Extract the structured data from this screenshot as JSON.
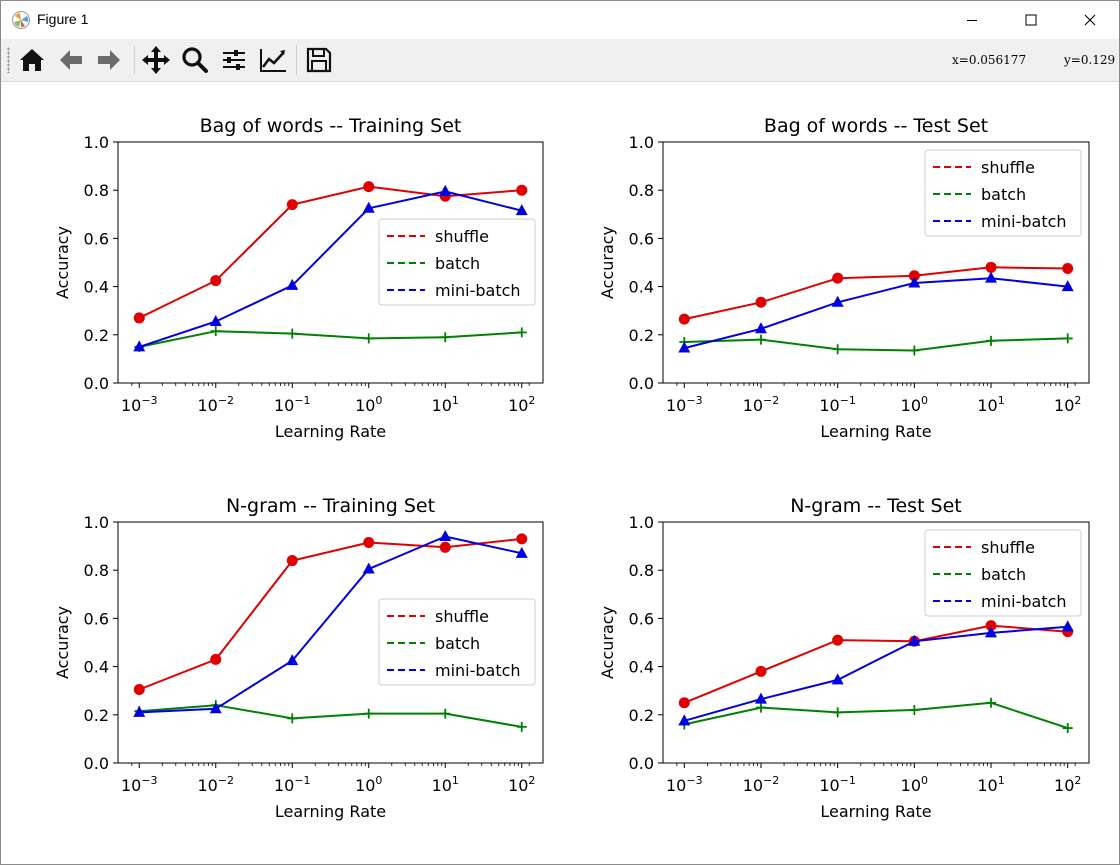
{
  "window": {
    "title": "Figure 1"
  },
  "toolbar": {
    "buttons": [
      {
        "name": "home-icon"
      },
      {
        "name": "back-icon"
      },
      {
        "name": "forward-icon"
      },
      {
        "name": "pan-icon"
      },
      {
        "name": "zoom-icon"
      },
      {
        "name": "configure-subplots-icon"
      },
      {
        "name": "edit-axis-icon"
      },
      {
        "name": "save-icon"
      }
    ],
    "x_readout": "x=0.056177",
    "y_readout": "y=0.129"
  },
  "series_styles": {
    "shuffle": {
      "color": "#e00000",
      "marker": "circle"
    },
    "batch": {
      "color": "#008000",
      "marker": "plus"
    },
    "mini-batch": {
      "color": "#0000e0",
      "marker": "triangle"
    }
  },
  "chart_data": [
    {
      "type": "line",
      "title": "Bag of words -- Training Set",
      "xlabel": "Learning Rate",
      "ylabel": "Accuracy",
      "xscale": "log",
      "x": [
        0.001,
        0.01,
        0.1,
        1,
        10,
        100
      ],
      "xtick_exponents": [
        "−3",
        "−2",
        "−1",
        "0",
        "1",
        "2"
      ],
      "ylim": [
        0,
        1
      ],
      "yticks": [
        "0.0",
        "0.2",
        "0.4",
        "0.6",
        "0.8",
        "1.0"
      ],
      "legend_position": "center-right",
      "series": [
        {
          "name": "shuffle",
          "values": [
            0.27,
            0.425,
            0.74,
            0.815,
            0.775,
            0.8
          ]
        },
        {
          "name": "batch",
          "values": [
            0.15,
            0.215,
            0.205,
            0.185,
            0.19,
            0.21
          ]
        },
        {
          "name": "mini-batch",
          "values": [
            0.15,
            0.255,
            0.405,
            0.725,
            0.795,
            0.715
          ]
        }
      ]
    },
    {
      "type": "line",
      "title": "Bag of words -- Test Set",
      "xlabel": "Learning Rate",
      "ylabel": "Accuracy",
      "xscale": "log",
      "x": [
        0.001,
        0.01,
        0.1,
        1,
        10,
        100
      ],
      "xtick_exponents": [
        "−3",
        "−2",
        "−1",
        "0",
        "1",
        "2"
      ],
      "ylim": [
        0,
        1
      ],
      "yticks": [
        "0.0",
        "0.2",
        "0.4",
        "0.6",
        "0.8",
        "1.0"
      ],
      "legend_position": "upper-right",
      "series": [
        {
          "name": "shuffle",
          "values": [
            0.265,
            0.335,
            0.435,
            0.445,
            0.48,
            0.475
          ]
        },
        {
          "name": "batch",
          "values": [
            0.17,
            0.18,
            0.14,
            0.135,
            0.175,
            0.185
          ]
        },
        {
          "name": "mini-batch",
          "values": [
            0.145,
            0.225,
            0.335,
            0.415,
            0.435,
            0.4
          ]
        }
      ]
    },
    {
      "type": "line",
      "title": "N-gram -- Training Set",
      "xlabel": "Learning Rate",
      "ylabel": "Accuracy",
      "xscale": "log",
      "x": [
        0.001,
        0.01,
        0.1,
        1,
        10,
        100
      ],
      "xtick_exponents": [
        "−3",
        "−2",
        "−1",
        "0",
        "1",
        "2"
      ],
      "ylim": [
        0,
        1
      ],
      "yticks": [
        "0.0",
        "0.2",
        "0.4",
        "0.6",
        "0.8",
        "1.0"
      ],
      "legend_position": "center-right",
      "series": [
        {
          "name": "shuffle",
          "values": [
            0.305,
            0.43,
            0.84,
            0.915,
            0.895,
            0.93
          ]
        },
        {
          "name": "batch",
          "values": [
            0.215,
            0.24,
            0.185,
            0.205,
            0.205,
            0.15
          ]
        },
        {
          "name": "mini-batch",
          "values": [
            0.21,
            0.225,
            0.425,
            0.805,
            0.94,
            0.87
          ]
        }
      ]
    },
    {
      "type": "line",
      "title": "N-gram -- Test Set",
      "xlabel": "Learning Rate",
      "ylabel": "Accuracy",
      "xscale": "log",
      "x": [
        0.001,
        0.01,
        0.1,
        1,
        10,
        100
      ],
      "xtick_exponents": [
        "−3",
        "−2",
        "−1",
        "0",
        "1",
        "2"
      ],
      "ylim": [
        0,
        1
      ],
      "yticks": [
        "0.0",
        "0.2",
        "0.4",
        "0.6",
        "0.8",
        "1.0"
      ],
      "legend_position": "upper-right",
      "series": [
        {
          "name": "shuffle",
          "values": [
            0.25,
            0.38,
            0.51,
            0.505,
            0.57,
            0.545
          ]
        },
        {
          "name": "batch",
          "values": [
            0.16,
            0.23,
            0.21,
            0.22,
            0.25,
            0.145
          ]
        },
        {
          "name": "mini-batch",
          "values": [
            0.175,
            0.265,
            0.345,
            0.505,
            0.54,
            0.565
          ]
        }
      ]
    }
  ]
}
